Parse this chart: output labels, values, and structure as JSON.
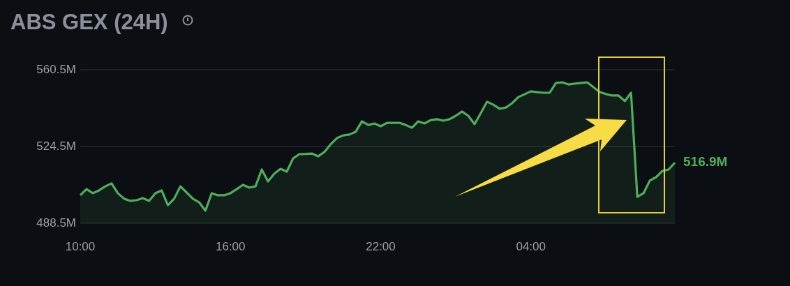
{
  "chart_data": {
    "type": "area",
    "title": "ABS GEX (24H)",
    "categories": [
      "10:00",
      null,
      null,
      null,
      null,
      null,
      null,
      null,
      null,
      null,
      null,
      null,
      null,
      null,
      null,
      null,
      null,
      null,
      null,
      null,
      null,
      null,
      null,
      null,
      "16:00",
      null,
      null,
      null,
      null,
      null,
      null,
      null,
      null,
      null,
      null,
      null,
      null,
      null,
      null,
      null,
      null,
      null,
      null,
      null,
      null,
      null,
      null,
      null,
      "22:00",
      null,
      null,
      null,
      null,
      null,
      null,
      null,
      null,
      null,
      null,
      null,
      null,
      null,
      null,
      null,
      null,
      null,
      null,
      null,
      null,
      null,
      null,
      null,
      "04:00",
      null,
      null,
      null,
      null,
      null,
      null,
      null,
      null,
      null,
      null,
      null,
      null,
      null,
      null,
      null,
      null,
      null,
      null,
      null,
      null,
      null,
      null,
      null
    ],
    "series": [
      {
        "color": "#4fae5c",
        "values": [
          501.6,
          504.5,
          502.6,
          503.9,
          505.8,
          507.2,
          502.6,
          500.0,
          499.0,
          499.3,
          500.3,
          499.0,
          502.6,
          503.9,
          497.0,
          500.0,
          505.8,
          502.9,
          500.0,
          498.3,
          494.4,
          502.6,
          501.6,
          501.6,
          502.6,
          504.5,
          506.5,
          505.2,
          505.8,
          513.7,
          508.1,
          511.7,
          514.0,
          512.7,
          518.9,
          520.9,
          521.0,
          521.2,
          519.9,
          521.9,
          525.5,
          528.4,
          529.7,
          530.1,
          531.4,
          536.3,
          534.6,
          535.3,
          534.0,
          535.6,
          535.6,
          535.6,
          534.6,
          533.3,
          536.3,
          535.3,
          536.9,
          537.3,
          536.6,
          537.3,
          538.9,
          540.9,
          538.9,
          535.0,
          540.2,
          545.5,
          544.1,
          542.2,
          542.8,
          544.8,
          547.7,
          549.0,
          550.4,
          550.0,
          549.7,
          549.7,
          554.3,
          554.6,
          553.6,
          554.0,
          554.3,
          554.6,
          552.3,
          550.0,
          549.1,
          548.4,
          548.4,
          545.8,
          549.7,
          500.9,
          502.6,
          508.5,
          510.1,
          513.0,
          513.7,
          516.9
        ]
      }
    ],
    "ylim": [
      488.5,
      560.5
    ],
    "yticks": [
      {
        "value": 488.5,
        "label": "488.5M"
      },
      {
        "value": 524.5,
        "label": "524.5M"
      },
      {
        "value": 560.5,
        "label": "560.5M"
      }
    ],
    "grid": "y",
    "legend": false,
    "marker": "none",
    "annotations": [
      "516.9M"
    ]
  }
}
